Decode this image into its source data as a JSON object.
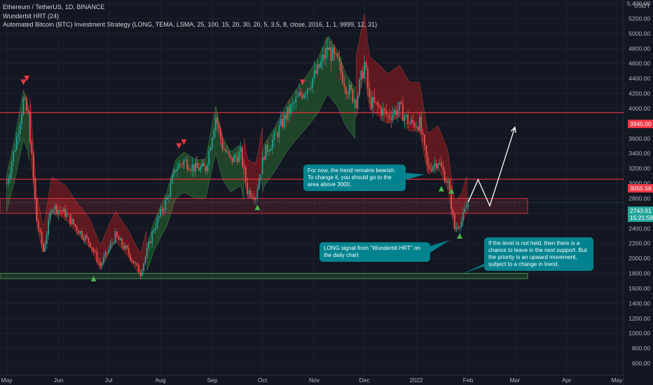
{
  "legend": {
    "symbol": "Ethereum / TetherUS, 1D, BINANCE",
    "indicator_1": "Wunderbit HRT (24)",
    "indicator_2": "Automated Bitcoin (BTC) Investment Strategy (LONG, TEMA, LSMA, 25, 100, 15, 20, 30, 20, 5, 3.5, 8, close, 2016, 1, 1, 9999, 12, 31)"
  },
  "axis": {
    "currency": "USDT",
    "price_ticks": [
      "5,400.00",
      "5200.00",
      "5000.00",
      "4800.00",
      "4600.00",
      "4400.00",
      "4200.00",
      "4000.00",
      "3800.00",
      "3600.00",
      "3400.00",
      "3200.00",
      "3000.00",
      "2800.00",
      "2600.00",
      "2400.00",
      "2200.00",
      "2000.00",
      "1800.00",
      "1600.00",
      "1400.00",
      "1200.00",
      "1000.00",
      "800.00",
      "600.00"
    ],
    "time_ticks": [
      "May",
      "Jun",
      "Jul",
      "Aug",
      "Sep",
      "Oct",
      "Nov",
      "Dec",
      "2022",
      "Feb",
      "Mar",
      "Apr",
      "May"
    ]
  },
  "price_labels": {
    "resistance_1": "3945.00",
    "resistance_2": "3055.58",
    "current": "2743.61",
    "countdown": "15:21:58"
  },
  "callouts": {
    "trend": "For now, the trend remains bearish. To change it, you should go to the area above 3000.",
    "long_signal": "LONG signal from \"Wunderbit HRT\" on the daily chart",
    "support": "If the level is not held, then there is a chance to leave in the next support. But the priority is an upward movement, subject to a change in trend."
  },
  "colors": {
    "background": "#131722",
    "resistance": "#f23645",
    "support_zone": "#4caf50",
    "bull_band": "#2e7d32",
    "bear_band": "#b71c1c",
    "callout": "#00838f",
    "up_candle": "#26a69a",
    "down_candle": "#ef5350"
  },
  "chart_data": {
    "type": "candlestick",
    "ylim": [
      600,
      5400
    ],
    "levels": [
      {
        "type": "resistance",
        "value": 3945
      },
      {
        "type": "resistance",
        "value": 3055.58
      },
      {
        "type": "zone",
        "from": 2600,
        "to": 2800
      },
      {
        "type": "zone",
        "from": 1730,
        "to": 1800
      }
    ],
    "close_path": [
      {
        "date": "2021-05-01",
        "close": 3000
      },
      {
        "date": "2021-05-06",
        "close": 3500
      },
      {
        "date": "2021-05-11",
        "close": 4100
      },
      {
        "date": "2021-05-14",
        "close": 3900
      },
      {
        "date": "2021-05-19",
        "close": 2500
      },
      {
        "date": "2021-05-23",
        "close": 2100
      },
      {
        "date": "2021-05-28",
        "close": 2700
      },
      {
        "date": "2021-06-05",
        "close": 2600
      },
      {
        "date": "2021-06-12",
        "close": 2400
      },
      {
        "date": "2021-06-20",
        "close": 2200
      },
      {
        "date": "2021-06-26",
        "close": 1900
      },
      {
        "date": "2021-07-05",
        "close": 2300
      },
      {
        "date": "2021-07-12",
        "close": 2100
      },
      {
        "date": "2021-07-20",
        "close": 1800
      },
      {
        "date": "2021-07-28",
        "close": 2400
      },
      {
        "date": "2021-08-05",
        "close": 2800
      },
      {
        "date": "2021-08-10",
        "close": 3200
      },
      {
        "date": "2021-08-15",
        "close": 3300
      },
      {
        "date": "2021-08-22",
        "close": 3200
      },
      {
        "date": "2021-08-28",
        "close": 3200
      },
      {
        "date": "2021-09-03",
        "close": 3900
      },
      {
        "date": "2021-09-07",
        "close": 3500
      },
      {
        "date": "2021-09-12",
        "close": 3300
      },
      {
        "date": "2021-09-18",
        "close": 3400
      },
      {
        "date": "2021-09-22",
        "close": 2900
      },
      {
        "date": "2021-09-27",
        "close": 2850
      },
      {
        "date": "2021-10-02",
        "close": 3400
      },
      {
        "date": "2021-10-08",
        "close": 3600
      },
      {
        "date": "2021-10-15",
        "close": 3900
      },
      {
        "date": "2021-10-21",
        "close": 4100
      },
      {
        "date": "2021-10-28",
        "close": 4300
      },
      {
        "date": "2021-11-03",
        "close": 4500
      },
      {
        "date": "2021-11-09",
        "close": 4800
      },
      {
        "date": "2021-11-15",
        "close": 4600
      },
      {
        "date": "2021-11-20",
        "close": 4300
      },
      {
        "date": "2021-11-26",
        "close": 4100
      },
      {
        "date": "2021-12-01",
        "close": 4600
      },
      {
        "date": "2021-12-04",
        "close": 4100
      },
      {
        "date": "2021-12-10",
        "close": 4000
      },
      {
        "date": "2021-12-15",
        "close": 3900
      },
      {
        "date": "2021-12-22",
        "close": 4000
      },
      {
        "date": "2021-12-28",
        "close": 3800
      },
      {
        "date": "2022-01-03",
        "close": 3800
      },
      {
        "date": "2022-01-08",
        "close": 3200
      },
      {
        "date": "2022-01-14",
        "close": 3300
      },
      {
        "date": "2022-01-20",
        "close": 3000
      },
      {
        "date": "2022-01-24",
        "close": 2400
      },
      {
        "date": "2022-01-28",
        "close": 2500
      },
      {
        "date": "2022-02-01",
        "close": 2743.61
      }
    ],
    "band_segments": [
      {
        "trend": "bull",
        "from": "2021-05-01",
        "to": "2021-05-15"
      },
      {
        "trend": "bear",
        "from": "2021-05-15",
        "to": "2021-07-24"
      },
      {
        "trend": "bull",
        "from": "2021-07-24",
        "to": "2021-09-20"
      },
      {
        "trend": "bear",
        "from": "2021-09-20",
        "to": "2021-10-01"
      },
      {
        "trend": "bull",
        "from": "2021-10-01",
        "to": "2021-11-26"
      },
      {
        "trend": "bear",
        "from": "2021-11-26",
        "to": "2022-02-01"
      }
    ],
    "signals": [
      {
        "type": "sell",
        "date": "2021-05-11",
        "price": 4350
      },
      {
        "type": "sell",
        "date": "2021-05-13",
        "price": 4400
      },
      {
        "type": "buy",
        "date": "2021-06-22",
        "price": 1730
      },
      {
        "type": "sell",
        "date": "2021-08-12",
        "price": 3500
      },
      {
        "type": "sell",
        "date": "2021-08-15",
        "price": 3550
      },
      {
        "type": "buy",
        "date": "2021-09-28",
        "price": 2680
      },
      {
        "type": "sell",
        "date": "2021-10-25",
        "price": 4350
      },
      {
        "type": "buy",
        "date": "2022-01-16",
        "price": 2930
      },
      {
        "type": "buy",
        "date": "2022-01-22",
        "price": 2900
      },
      {
        "type": "buy",
        "date": "2022-01-27",
        "price": 2300
      }
    ],
    "projection": [
      {
        "date": "2022-02-01",
        "close": 2750
      },
      {
        "date": "2022-02-07",
        "close": 3050
      },
      {
        "date": "2022-02-14",
        "close": 2700
      },
      {
        "date": "2022-03-01",
        "close": 3750
      }
    ]
  }
}
